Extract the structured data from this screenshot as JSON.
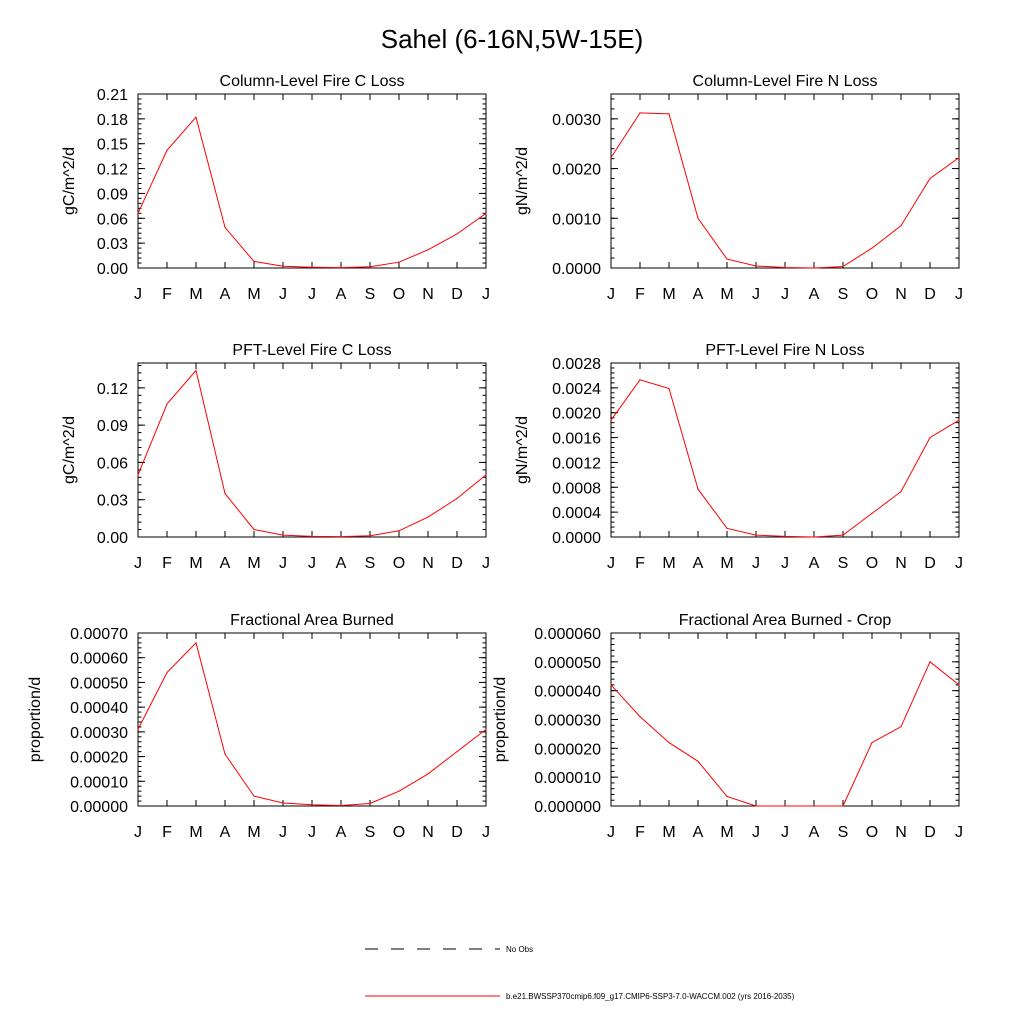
{
  "page": {
    "title": "Sahel (6-16N,5W-15E)"
  },
  "colors": {
    "model": "#ff0000",
    "obs": "#000000",
    "axis": "#000000"
  },
  "chart_data": [
    {
      "type": "line",
      "title": "Column-Level Fire C Loss",
      "ylabel": "gC/m^2/d",
      "categories": [
        "J",
        "F",
        "M",
        "A",
        "M",
        "J",
        "J",
        "A",
        "S",
        "O",
        "N",
        "D",
        "J"
      ],
      "ylim": [
        0,
        0.21
      ],
      "yticks": [
        "0.00",
        "0.03",
        "0.06",
        "0.09",
        "0.12",
        "0.15",
        "0.18",
        "0.21"
      ],
      "series": [
        {
          "name": "b.e21.BWSSP370cmip6.f09_g17.CMIP6-SSP3-7.0-WACCM.002 (yrs 2016-2035)",
          "values": [
            0.066,
            0.142,
            0.182,
            0.049,
            0.008,
            0.002,
            0.001,
            0.0005,
            0.0015,
            0.007,
            0.022,
            0.041,
            0.066
          ]
        }
      ]
    },
    {
      "type": "line",
      "title": "Column-Level Fire N Loss",
      "ylabel": "gN/m^2/d",
      "categories": [
        "J",
        "F",
        "M",
        "A",
        "M",
        "J",
        "J",
        "A",
        "S",
        "O",
        "N",
        "D",
        "J"
      ],
      "ylim": [
        0,
        0.0035
      ],
      "yticks": [
        "0.0000",
        "0.0010",
        "0.0020",
        "0.0030"
      ],
      "series": [
        {
          "name": "b.e21.BWSSP370cmip6.f09_g17.CMIP6-SSP3-7.0-WACCM.002 (yrs 2016-2035)",
          "values": [
            0.00222,
            0.00312,
            0.0031,
            0.001,
            0.00018,
            4e-05,
            1e-05,
            0.0,
            3e-05,
            0.0004,
            0.00085,
            0.0018,
            0.00222
          ]
        }
      ]
    },
    {
      "type": "line",
      "title": "PFT-Level Fire C Loss",
      "ylabel": "gC/m^2/d",
      "categories": [
        "J",
        "F",
        "M",
        "A",
        "M",
        "J",
        "J",
        "A",
        "S",
        "O",
        "N",
        "D",
        "J"
      ],
      "ylim": [
        0,
        0.14
      ],
      "yticks": [
        "0.00",
        "0.03",
        "0.06",
        "0.09",
        "0.12"
      ],
      "series": [
        {
          "name": "b.e21.BWSSP370cmip6.f09_g17.CMIP6-SSP3-7.0-WACCM.002 (yrs 2016-2035)",
          "values": [
            0.05,
            0.107,
            0.134,
            0.035,
            0.006,
            0.0015,
            0.0005,
            0.0003,
            0.001,
            0.005,
            0.016,
            0.031,
            0.05
          ]
        }
      ]
    },
    {
      "type": "line",
      "title": "PFT-Level Fire N Loss",
      "ylabel": "gN/m^2/d",
      "categories": [
        "J",
        "F",
        "M",
        "A",
        "M",
        "J",
        "J",
        "A",
        "S",
        "O",
        "N",
        "D",
        "J"
      ],
      "ylim": [
        0,
        0.0028
      ],
      "yticks": [
        "0.0000",
        "0.0004",
        "0.0008",
        "0.0012",
        "0.0016",
        "0.0020",
        "0.0024",
        "0.0028"
      ],
      "series": [
        {
          "name": "b.e21.BWSSP370cmip6.f09_g17.CMIP6-SSP3-7.0-WACCM.002 (yrs 2016-2035)",
          "values": [
            0.00188,
            0.00253,
            0.00239,
            0.00077,
            0.00014,
            3e-05,
            1e-05,
            0.0,
            3e-05,
            0.00038,
            0.00073,
            0.0016,
            0.00188
          ]
        }
      ]
    },
    {
      "type": "line",
      "title": "Fractional Area Burned",
      "ylabel": "proportion/d",
      "categories": [
        "J",
        "F",
        "M",
        "A",
        "M",
        "J",
        "J",
        "A",
        "S",
        "O",
        "N",
        "D",
        "J"
      ],
      "ylim": [
        0,
        0.0007
      ],
      "yticks": [
        "0.00000",
        "0.00010",
        "0.00020",
        "0.00030",
        "0.00040",
        "0.00050",
        "0.00060",
        "0.00070"
      ],
      "series": [
        {
          "name": "b.e21.BWSSP370cmip6.f09_g17.CMIP6-SSP3-7.0-WACCM.002 (yrs 2016-2035)",
          "values": [
            0.00031,
            0.00054,
            0.00066,
            0.00021,
            4e-05,
            1.2e-05,
            5e-06,
            2e-06,
            1e-05,
            6e-05,
            0.00013,
            0.00022,
            0.00031
          ]
        }
      ]
    },
    {
      "type": "line",
      "title": "Fractional Area Burned - Crop",
      "ylabel": "proportion/d",
      "categories": [
        "J",
        "F",
        "M",
        "A",
        "M",
        "J",
        "J",
        "A",
        "S",
        "O",
        "N",
        "D",
        "J"
      ],
      "ylim": [
        0,
        6e-05
      ],
      "yticks": [
        "0.000000",
        "0.000010",
        "0.000020",
        "0.000030",
        "0.000040",
        "0.000050",
        "0.000060"
      ],
      "series": [
        {
          "name": "b.e21.BWSSP370cmip6.f09_g17.CMIP6-SSP3-7.0-WACCM.002 (yrs 2016-2035)",
          "values": [
            4.2e-05,
            3.1e-05,
            2.2e-05,
            1.55e-05,
            3.3e-06,
            0.0,
            0.0,
            0.0,
            0.0,
            2.2e-05,
            2.75e-05,
            5e-05,
            4.2e-05
          ]
        }
      ]
    }
  ],
  "legend": {
    "obs_label": "No Obs",
    "model_label": "b.e21.BWSSP370cmip6.f09_g17.CMIP6-SSP3-7.0-WACCM.002 (yrs 2016-2035)"
  }
}
